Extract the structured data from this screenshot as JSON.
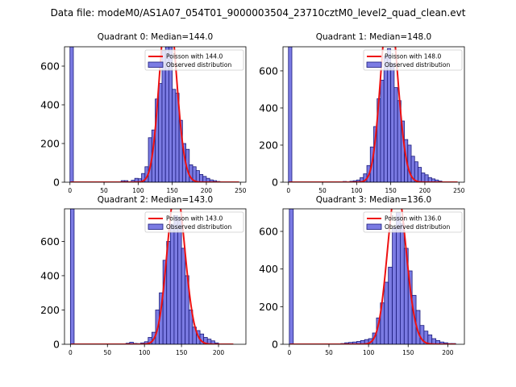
{
  "figure_title": "Data file: modeM0/AS1A07_054T01_9000003504_23710cztM0_level2_quad_clean.evt",
  "colors": {
    "bar_fill": "#7b7be3",
    "bar_edge": "#1a1a7a",
    "curve": "#ee1111"
  },
  "chart_data": [
    {
      "type": "bar",
      "title": "Quadrant 0: Median=144.0",
      "xlim": [
        -8,
        258
      ],
      "ylim": [
        0,
        700
      ],
      "xticks": [
        0,
        50,
        100,
        150,
        200,
        250
      ],
      "yticks": [
        0,
        200,
        400,
        600
      ],
      "bin_width": 5,
      "bins": [
        [
          0,
          700
        ],
        [
          75,
          8
        ],
        [
          80,
          8
        ],
        [
          85,
          3
        ],
        [
          90,
          10
        ],
        [
          95,
          20
        ],
        [
          100,
          18
        ],
        [
          105,
          45
        ],
        [
          110,
          80
        ],
        [
          115,
          230
        ],
        [
          120,
          270
        ],
        [
          125,
          430
        ],
        [
          130,
          510
        ],
        [
          135,
          680
        ],
        [
          140,
          700
        ],
        [
          145,
          700
        ],
        [
          150,
          480
        ],
        [
          155,
          460
        ],
        [
          160,
          320
        ],
        [
          165,
          200
        ],
        [
          170,
          170
        ],
        [
          175,
          90
        ],
        [
          180,
          80
        ],
        [
          185,
          60
        ],
        [
          190,
          40
        ],
        [
          195,
          30
        ],
        [
          200,
          20
        ],
        [
          205,
          12
        ],
        [
          210,
          8
        ],
        [
          215,
          4
        ]
      ],
      "poisson_mean": 144.0,
      "curve_range": [
        1,
        248
      ],
      "legend": [
        "Poisson with 144.0",
        "Observed distribution"
      ]
    },
    {
      "type": "bar",
      "title": "Quadrant 1: Median=148.0",
      "xlim": [
        -8,
        258
      ],
      "ylim": [
        0,
        730
      ],
      "xticks": [
        0,
        50,
        100,
        150,
        200,
        250
      ],
      "yticks": [
        0,
        200,
        400,
        600
      ],
      "bin_width": 5,
      "bins": [
        [
          0,
          730
        ],
        [
          70,
          2
        ],
        [
          80,
          4
        ],
        [
          90,
          5
        ],
        [
          95,
          8
        ],
        [
          100,
          12
        ],
        [
          105,
          25
        ],
        [
          110,
          45
        ],
        [
          115,
          90
        ],
        [
          120,
          190
        ],
        [
          125,
          300
        ],
        [
          130,
          450
        ],
        [
          135,
          550
        ],
        [
          140,
          680
        ],
        [
          145,
          720
        ],
        [
          150,
          640
        ],
        [
          155,
          510
        ],
        [
          160,
          440
        ],
        [
          165,
          330
        ],
        [
          170,
          230
        ],
        [
          175,
          200
        ],
        [
          180,
          140
        ],
        [
          185,
          110
        ],
        [
          190,
          80
        ],
        [
          195,
          50
        ],
        [
          200,
          40
        ],
        [
          205,
          25
        ],
        [
          210,
          18
        ],
        [
          215,
          12
        ],
        [
          220,
          6
        ]
      ],
      "poisson_mean": 148.0,
      "curve_range": [
        1,
        248
      ],
      "legend": [
        "Poisson with 148.0",
        "Observed distribution"
      ]
    },
    {
      "type": "bar",
      "title": "Quadrant 2: Median=143.0",
      "xlim": [
        -8,
        237
      ],
      "ylim": [
        0,
        790
      ],
      "xticks": [
        0,
        50,
        100,
        150,
        200
      ],
      "yticks": [
        0,
        200,
        400,
        600
      ],
      "bin_width": 5,
      "bins": [
        [
          0,
          790
        ],
        [
          75,
          6
        ],
        [
          80,
          12
        ],
        [
          85,
          5
        ],
        [
          90,
          4
        ],
        [
          95,
          8
        ],
        [
          100,
          15
        ],
        [
          105,
          40
        ],
        [
          110,
          70
        ],
        [
          115,
          200
        ],
        [
          120,
          300
        ],
        [
          125,
          490
        ],
        [
          130,
          600
        ],
        [
          135,
          700
        ],
        [
          140,
          750
        ],
        [
          145,
          740
        ],
        [
          150,
          560
        ],
        [
          155,
          400
        ],
        [
          160,
          200
        ],
        [
          165,
          100
        ],
        [
          170,
          80
        ],
        [
          175,
          60
        ],
        [
          180,
          40
        ],
        [
          185,
          30
        ],
        [
          190,
          20
        ],
        [
          195,
          8
        ]
      ],
      "poisson_mean": 143.0,
      "curve_range": [
        1,
        220
      ],
      "legend": [
        "Poisson with 143.0",
        "Observed distribution"
      ]
    },
    {
      "type": "bar",
      "title": "Quadrant 3: Median=136.0",
      "xlim": [
        -8,
        221
      ],
      "ylim": [
        0,
        720
      ],
      "xticks": [
        0,
        50,
        100,
        150,
        200
      ],
      "yticks": [
        0,
        200,
        400,
        600
      ],
      "bin_width": 5,
      "bins": [
        [
          0,
          720
        ],
        [
          65,
          4
        ],
        [
          70,
          8
        ],
        [
          75,
          10
        ],
        [
          80,
          12
        ],
        [
          85,
          15
        ],
        [
          90,
          20
        ],
        [
          95,
          25
        ],
        [
          100,
          30
        ],
        [
          105,
          60
        ],
        [
          110,
          140
        ],
        [
          115,
          220
        ],
        [
          120,
          330
        ],
        [
          125,
          410
        ],
        [
          130,
          620
        ],
        [
          135,
          700
        ],
        [
          140,
          640
        ],
        [
          145,
          510
        ],
        [
          150,
          390
        ],
        [
          155,
          260
        ],
        [
          160,
          180
        ],
        [
          165,
          100
        ],
        [
          170,
          70
        ],
        [
          175,
          50
        ],
        [
          180,
          30
        ],
        [
          185,
          20
        ],
        [
          190,
          12
        ],
        [
          195,
          8
        ],
        [
          200,
          4
        ],
        [
          205,
          4
        ]
      ],
      "poisson_mean": 136.0,
      "curve_range": [
        1,
        210
      ],
      "legend": [
        "Poisson with 136.0",
        "Observed distribution"
      ]
    }
  ]
}
